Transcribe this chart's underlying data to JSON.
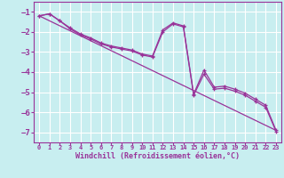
{
  "xlabel": "Windchill (Refroidissement éolien,°C)",
  "background_color": "#c8eef0",
  "grid_color": "#ffffff",
  "line_color": "#993399",
  "label_color": "#993399",
  "xlim": [
    -0.5,
    23.5
  ],
  "ylim": [
    -7.5,
    -0.5
  ],
  "xticks": [
    0,
    1,
    2,
    3,
    4,
    5,
    6,
    7,
    8,
    9,
    10,
    11,
    12,
    13,
    14,
    15,
    16,
    17,
    18,
    19,
    20,
    21,
    22,
    23
  ],
  "yticks": [
    -7,
    -6,
    -5,
    -4,
    -3,
    -2,
    -1
  ],
  "series1": [
    [
      0,
      -1.2
    ],
    [
      1,
      -1.1
    ],
    [
      2,
      -1.45
    ],
    [
      3,
      -1.8
    ],
    [
      4,
      -2.1
    ],
    [
      5,
      -2.3
    ],
    [
      6,
      -2.55
    ],
    [
      7,
      -2.7
    ],
    [
      8,
      -2.8
    ],
    [
      9,
      -2.9
    ],
    [
      10,
      -3.1
    ],
    [
      11,
      -3.2
    ],
    [
      12,
      -1.9
    ],
    [
      13,
      -1.55
    ],
    [
      14,
      -1.7
    ],
    [
      15,
      -5.1
    ],
    [
      16,
      -3.9
    ],
    [
      17,
      -4.75
    ],
    [
      18,
      -4.7
    ],
    [
      19,
      -4.85
    ],
    [
      20,
      -5.05
    ],
    [
      21,
      -5.35
    ],
    [
      22,
      -5.65
    ],
    [
      23,
      -6.9
    ]
  ],
  "series2": [
    [
      0,
      -1.2
    ],
    [
      1,
      -1.1
    ],
    [
      2,
      -1.45
    ],
    [
      3,
      -1.85
    ],
    [
      4,
      -2.15
    ],
    [
      5,
      -2.35
    ],
    [
      6,
      -2.6
    ],
    [
      7,
      -2.75
    ],
    [
      8,
      -2.85
    ],
    [
      9,
      -2.95
    ],
    [
      10,
      -3.15
    ],
    [
      11,
      -3.25
    ],
    [
      12,
      -2.0
    ],
    [
      13,
      -1.6
    ],
    [
      14,
      -1.75
    ],
    [
      15,
      -5.15
    ],
    [
      16,
      -4.1
    ],
    [
      17,
      -4.85
    ],
    [
      18,
      -4.8
    ],
    [
      19,
      -4.95
    ],
    [
      20,
      -5.15
    ],
    [
      21,
      -5.45
    ],
    [
      22,
      -5.75
    ],
    [
      23,
      -6.95
    ]
  ],
  "series3": [
    [
      0,
      -1.2
    ],
    [
      23,
      -6.9
    ]
  ]
}
